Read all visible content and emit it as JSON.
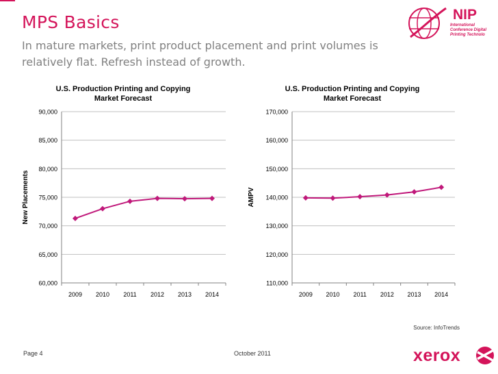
{
  "page": {
    "title": "MPS Basics",
    "subtitle": "In mature markets, print product placement and print volumes is relatively flat.  Refresh instead of growth.",
    "source": "Source: InfoTrends",
    "page_number": "Page 4",
    "date": "October 2011"
  },
  "logos": {
    "nip": "NIP",
    "nip_sub": "International Conference Digital Printing Technolo",
    "xerox": "xerox"
  },
  "colors": {
    "accent": "#d4145a",
    "series": "#c0187a",
    "grid": "#bfbfbf"
  },
  "chart_data": [
    {
      "type": "line",
      "title": "U.S. Production Printing and Copying Market Forecast",
      "title_lines": [
        "U.S. Production Printing and Copying",
        "Market Forecast"
      ],
      "xlabel": "",
      "ylabel": "New Placements",
      "categories": [
        "2009",
        "2010",
        "2011",
        "2012",
        "2013",
        "2014"
      ],
      "values": [
        71300,
        73000,
        74300,
        74800,
        74750,
        74800
      ],
      "ylim": [
        60000,
        90000
      ],
      "yticks": [
        60000,
        65000,
        70000,
        75000,
        80000,
        85000,
        90000
      ],
      "ytick_labels": [
        "60,000",
        "65,000",
        "70,000",
        "75,000",
        "80,000",
        "85,000",
        "90,000"
      ],
      "grid": true,
      "legend": "none"
    },
    {
      "type": "line",
      "title": "U.S. Production Printing and Copying Market Forecast",
      "title_lines": [
        "U.S. Production Printing and Copying",
        "Market Forecast"
      ],
      "xlabel": "",
      "ylabel": "AMPV",
      "categories": [
        "2009",
        "2010",
        "2011",
        "2012",
        "2013",
        "2014"
      ],
      "values": [
        139800,
        139700,
        140200,
        140800,
        141900,
        143500
      ],
      "ylim": [
        110000,
        170000
      ],
      "yticks": [
        110000,
        120000,
        130000,
        140000,
        150000,
        160000,
        170000
      ],
      "ytick_labels": [
        "110,000",
        "120,000",
        "130,000",
        "140,000",
        "150,000",
        "160,000",
        "170,000"
      ],
      "grid": true,
      "legend": "none"
    }
  ]
}
